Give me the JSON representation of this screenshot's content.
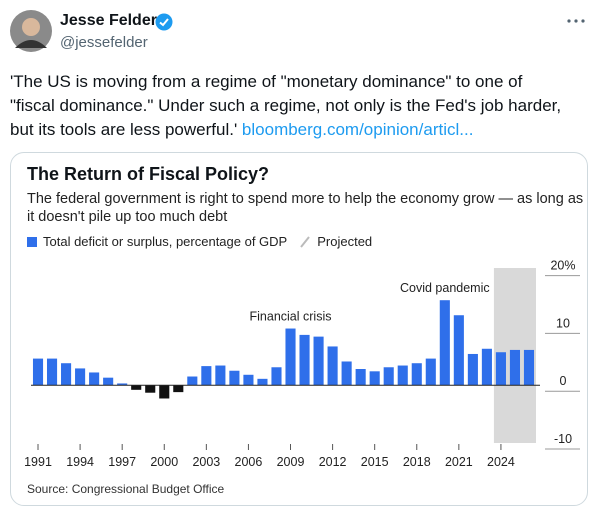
{
  "tweet": {
    "name": "Jesse Felder",
    "handle": "@jessefelder",
    "body": "'The US is moving from a regime of \"monetary dominance\" to one of \"fiscal dominance.\" Under such a regime, not only is the Fed's job harder, but its tools are less powerful.'",
    "link": "bloomberg.com/opinion/articl..."
  },
  "chart_data": {
    "type": "bar",
    "title": "The Return of Fiscal Policy?",
    "subtitle": "The federal government is right to spend more to help the economy grow — as long as it doesn't pile up too much debt",
    "source": "Source: Congressional Budget Office",
    "x": [
      1991,
      1992,
      1993,
      1994,
      1995,
      1996,
      1997,
      1998,
      1999,
      2000,
      2001,
      2002,
      2003,
      2004,
      2005,
      2006,
      2007,
      2008,
      2009,
      2010,
      2011,
      2012,
      2013,
      2014,
      2015,
      2016,
      2017,
      2018,
      2019,
      2020,
      2021,
      2022,
      2023,
      2024,
      2025,
      2026
    ],
    "series": [
      {
        "name": "Total deficit or surplus, percentage of GDP",
        "color": "#2f6fea",
        "values": [
          4.6,
          4.6,
          3.8,
          2.9,
          2.2,
          1.3,
          0.3,
          -0.8,
          -1.3,
          -2.3,
          -1.2,
          1.5,
          3.3,
          3.4,
          2.5,
          1.8,
          1.1,
          3.1,
          9.8,
          8.7,
          8.4,
          6.7,
          4.1,
          2.8,
          2.4,
          3.1,
          3.4,
          3.8,
          4.6,
          14.7,
          12.1,
          5.4,
          6.3,
          5.7,
          6.1,
          6.1
        ]
      }
    ],
    "negative_color": "#111111",
    "projected": {
      "label": "Projected",
      "start": 2024,
      "color": "#d9d9d9"
    },
    "annotations": [
      {
        "text": "Financial crisis",
        "x": 2009
      },
      {
        "text": "Covid pandemic",
        "x": 2020
      }
    ],
    "xlim": [
      1990.5,
      2026.5
    ],
    "xticks": [
      1991,
      1994,
      1997,
      2000,
      2003,
      2006,
      2009,
      2012,
      2015,
      2018,
      2021,
      2024
    ],
    "ylim": [
      -10,
      22
    ],
    "yticks": [
      {
        "value": 20,
        "label": "20%"
      },
      10,
      0,
      -10
    ]
  }
}
